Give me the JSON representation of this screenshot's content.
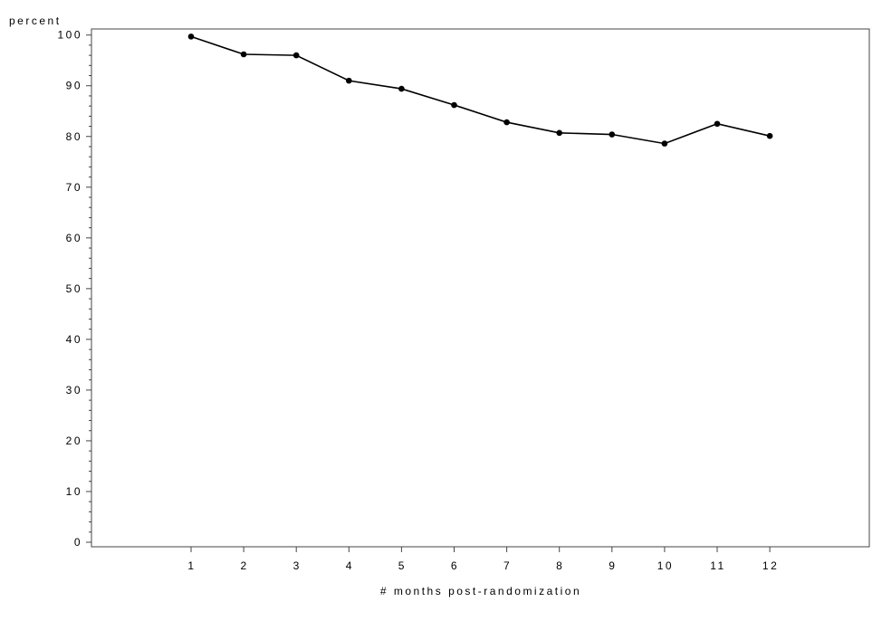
{
  "chart_data": {
    "type": "line",
    "title": "",
    "xlabel": "# months post-randomization",
    "ylabel": "percent",
    "x": [
      1,
      2,
      3,
      4,
      5,
      6,
      7,
      8,
      9,
      10,
      11,
      12
    ],
    "y": [
      99.7,
      96.2,
      96.0,
      91.0,
      89.4,
      86.2,
      82.8,
      80.7,
      80.4,
      78.6,
      82.5,
      80.1
    ],
    "yticks": [
      0,
      10,
      20,
      30,
      40,
      50,
      60,
      70,
      80,
      90,
      100
    ],
    "xticks": [
      1,
      2,
      3,
      4,
      5,
      6,
      7,
      8,
      9,
      10,
      11,
      12
    ],
    "ylim": [
      0,
      100
    ],
    "xlim": [
      -0.7,
      13.4
    ],
    "grid": false,
    "marker": "filled-circle",
    "line_color": "#000000"
  }
}
